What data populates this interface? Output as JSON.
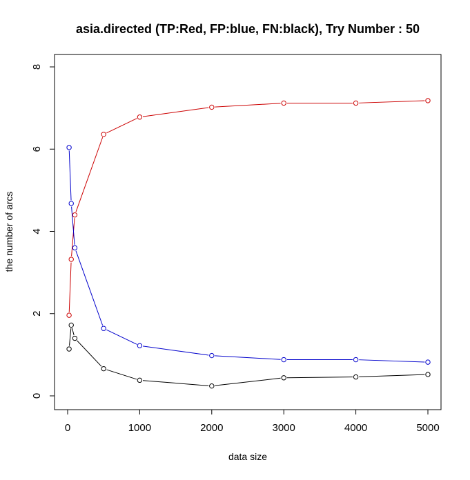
{
  "chart_data": {
    "type": "line",
    "title": "asia.directed  (TP:Red, FP:blue, FN:black),  Try Number :  50",
    "xlabel": "data size",
    "ylabel": "the number of arcs",
    "x": [
      20,
      50,
      100,
      500,
      1000,
      2000,
      3000,
      4000,
      5000
    ],
    "xlim": [
      0,
      5000
    ],
    "ylim": [
      0,
      8
    ],
    "xticks": [
      0,
      1000,
      2000,
      3000,
      4000,
      5000
    ],
    "yticks": [
      0,
      2,
      4,
      6,
      8
    ],
    "grid": false,
    "series": [
      {
        "color": "#cc0000",
        "values": [
          1.96,
          3.32,
          4.4,
          6.36,
          6.78,
          7.02,
          7.12,
          7.12,
          7.18
        ]
      },
      {
        "color": "#0000cc",
        "values": [
          6.04,
          4.68,
          3.6,
          1.64,
          1.22,
          0.98,
          0.88,
          0.88,
          0.82
        ]
      },
      {
        "color": "#000000",
        "values": [
          1.14,
          1.72,
          1.4,
          0.66,
          0.38,
          0.24,
          0.44,
          0.46,
          0.52
        ]
      }
    ]
  }
}
